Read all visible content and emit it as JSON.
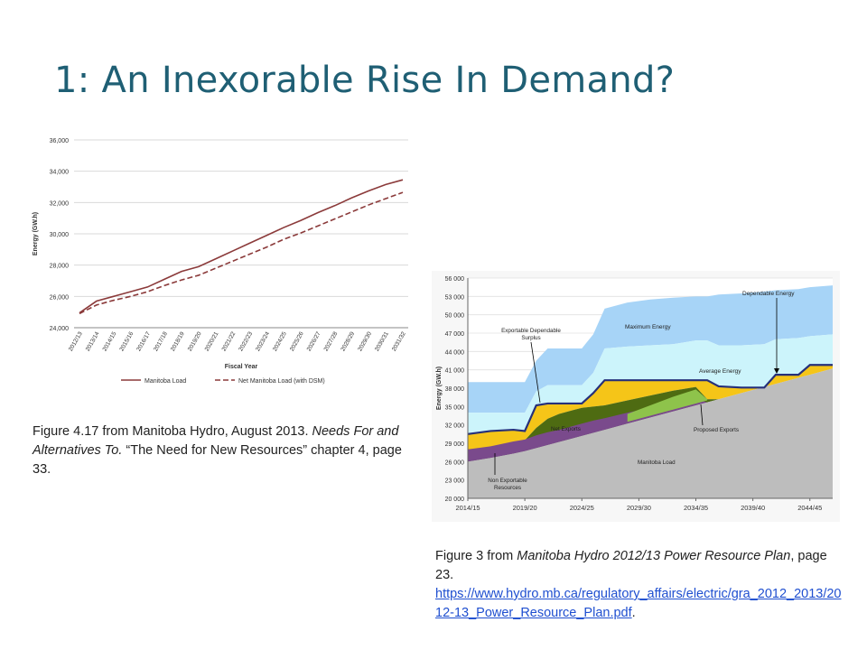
{
  "slide": {
    "title": "1: An Inexorable Rise In Demand?"
  },
  "caption1": {
    "prefix": "Figure 4.17 from Manitoba Hydro, August 2013. ",
    "italic": "Needs For and Alternatives To.",
    "suffix": " “The Need for New Resources” chapter 4, page 33."
  },
  "caption2": {
    "prefix": "Figure 3 from ",
    "italic": "Manitoba Hydro 2012/13 Power Resource Plan",
    "suffix": ", page 23.",
    "link": "https://www.hydro.mb.ca/regulatory_affairs/electric/gra_2012_2013/2012-13_Power_Resource_Plan.pdf",
    "end": "."
  },
  "colors": {
    "title": "#1f5f74",
    "load_line": "#8b3a3a",
    "max_energy": "#a7d4f7",
    "avg_energy": "#ccf4fb",
    "exportable_surplus": "#f5c518",
    "net_exports": "#4e6b12",
    "proposed_exports": "#8ec34b",
    "non_exportable": "#7a4a8c",
    "manitoba_load": "#bdbdbd",
    "dependable_line": "#26307a",
    "link": "#1f4fd0"
  },
  "chart_data": [
    {
      "type": "line",
      "ylabel": "Energy (GW.h)",
      "xlabel": "Fiscal Year",
      "ylim": [
        24000,
        36000
      ],
      "yticks": [
        "24,000",
        "26,000",
        "28,000",
        "30,000",
        "32,000",
        "34,000",
        "36,000"
      ],
      "grid": true,
      "legend": "bottom",
      "categories": [
        "2012/13",
        "2013/14",
        "2014/15",
        "2015/16",
        "2016/17",
        "2017/18",
        "2018/19",
        "2019/20",
        "2020/21",
        "2021/22",
        "2022/23",
        "2023/24",
        "2024/25",
        "2025/26",
        "2026/27",
        "2027/28",
        "2028/29",
        "2029/30",
        "2030/31",
        "2031/32"
      ],
      "series": [
        {
          "name": "Manitoba Load",
          "style": "solid",
          "values": [
            24950,
            25700,
            26000,
            26300,
            26600,
            27100,
            27600,
            27900,
            28400,
            28900,
            29400,
            29900,
            30400,
            30850,
            31350,
            31800,
            32300,
            32750,
            33150,
            33450
          ]
        },
        {
          "name": "Net Manitoba Load (with DSM)",
          "style": "dashed",
          "values": [
            24900,
            25450,
            25750,
            26000,
            26300,
            26700,
            27050,
            27350,
            27800,
            28250,
            28700,
            29150,
            29650,
            30050,
            30500,
            30950,
            31400,
            31850,
            32250,
            32650
          ]
        }
      ]
    },
    {
      "type": "area",
      "ylabel": "Energy (GW.h)",
      "ylim": [
        20000,
        56000
      ],
      "yticks": [
        "20 000",
        "23 000",
        "26 000",
        "29 000",
        "32 000",
        "35 000",
        "38 000",
        "41 000",
        "44 000",
        "47 000",
        "50 000",
        "53 000",
        "56 000"
      ],
      "xticks": [
        "2014/15",
        "2019/20",
        "2024/25",
        "2029/30",
        "2034/35",
        "2039/40",
        "2044/45"
      ],
      "grid": true,
      "x": [
        2014,
        2016,
        2018,
        2019,
        2020,
        2021,
        2022,
        2024,
        2025,
        2026,
        2028,
        2030,
        2032,
        2034,
        2035,
        2036,
        2038,
        2040,
        2041,
        2043,
        2044,
        2046
      ],
      "load": [
        26000,
        26600,
        27300,
        27700,
        28200,
        28700,
        29200,
        30200,
        30700,
        31200,
        32200,
        33200,
        34200,
        35200,
        35700,
        36200,
        37200,
        38200,
        38700,
        39700,
        40200,
        41200
      ],
      "dependable": [
        30500,
        31000,
        31200,
        31000,
        35200,
        35500,
        35500,
        35500,
        37200,
        39300,
        39300,
        39300,
        39300,
        39300,
        39300,
        38300,
        38100,
        38100,
        40200,
        40200,
        41800,
        41800
      ],
      "average": [
        34000,
        34000,
        34000,
        34000,
        37500,
        38500,
        38500,
        38500,
        40500,
        44500,
        44800,
        45000,
        45200,
        45800,
        45800,
        45000,
        45000,
        45200,
        46000,
        46200,
        46500,
        46800
      ],
      "maximum": [
        39000,
        39000,
        39000,
        39000,
        42500,
        44500,
        44500,
        44500,
        46800,
        51000,
        52000,
        52500,
        52800,
        53000,
        53000,
        53300,
        53500,
        53800,
        54000,
        54200,
        54500,
        54800
      ],
      "exports_top": [
        27500,
        28300,
        29000,
        29500,
        31500,
        33000,
        33800,
        34800,
        35000,
        35200,
        36000,
        36800,
        37600,
        38200,
        36200,
        36200,
        37200,
        38200,
        38700,
        39700,
        40200,
        41200
      ],
      "non_exportable_top": [
        28000,
        28500,
        29300,
        29600,
        30300,
        30800,
        31200,
        32200,
        32700,
        33100,
        34000,
        34800,
        35700,
        36200,
        35700,
        36200,
        37200,
        38200,
        38700,
        39700,
        40200,
        41200
      ],
      "labels": [
        "Dependable Energy",
        "Maximum Energy",
        "Exportable Dependable Surplus",
        "Average Energy",
        "Net Exports",
        "Proposed Exports",
        "Manitoba Load",
        "Non Exportable Resources"
      ]
    }
  ]
}
